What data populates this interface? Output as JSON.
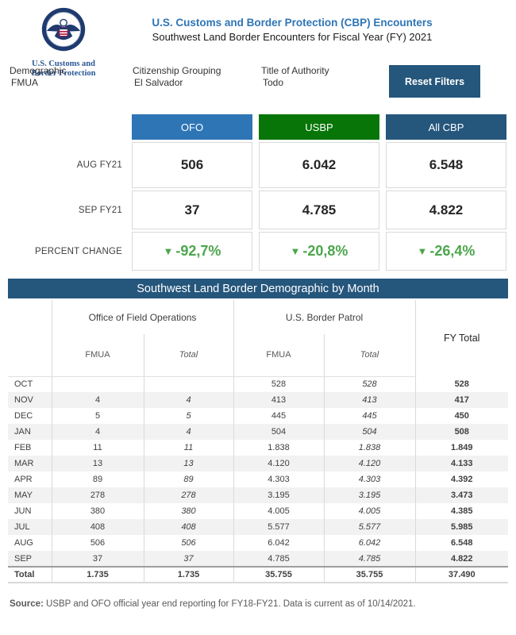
{
  "header": {
    "logo_caption_line1": "U.S. Customs and",
    "logo_caption_line2": "Border Protection",
    "title": "U.S. Customs and Border Protection (CBP) Encounters",
    "subtitle": "Southwest Land Border Encounters for Fiscal Year (FY) 2021"
  },
  "filters": [
    {
      "label": "Demographic",
      "value": "FMUA"
    },
    {
      "label": "Citizenship Grouping",
      "value": "El Salvador"
    },
    {
      "label": "Title of Authority",
      "value": "Todo"
    }
  ],
  "reset_button_label": "Reset Filters",
  "colors": {
    "title_blue": "#2E75B6",
    "ofo_blue": "#2E75B6",
    "usbp_green": "#077507",
    "navy": "#25567C",
    "percent_green": "#4CA64C",
    "alt_row": "#F2F2F2",
    "border_gray": "#D9D9D9"
  },
  "icons": {
    "down_triangle": "▼"
  },
  "summary": {
    "row_labels": {
      "aug": "AUG FY21",
      "sep": "SEP FY21",
      "pct": "PERCENT CHANGE"
    },
    "columns": [
      {
        "label": "OFO",
        "color": "#2E75B6",
        "aug": "506",
        "sep": "37",
        "pct": "-92,7%"
      },
      {
        "label": "USBP",
        "color": "#077507",
        "aug": "6.042",
        "sep": "4.785",
        "pct": "-20,8%"
      },
      {
        "label": "All CBP",
        "color": "#25567C",
        "aug": "6.548",
        "sep": "4.822",
        "pct": "-26,4%"
      }
    ]
  },
  "table": {
    "banner": "Southwest Land Border Demographic by Month",
    "group_headers": {
      "ofo": "Office of Field Operations",
      "usbp": "U.S. Border Patrol",
      "fy_total": "FY Total"
    },
    "sub_headers": {
      "fmua": "FMUA",
      "total": "Total"
    },
    "rows": [
      {
        "month": "OCT",
        "ofo_fmua": "",
        "ofo_total": "",
        "usbp_fmua": "528",
        "usbp_total": "528",
        "fy_total": "528"
      },
      {
        "month": "NOV",
        "ofo_fmua": "4",
        "ofo_total": "4",
        "usbp_fmua": "413",
        "usbp_total": "413",
        "fy_total": "417"
      },
      {
        "month": "DEC",
        "ofo_fmua": "5",
        "ofo_total": "5",
        "usbp_fmua": "445",
        "usbp_total": "445",
        "fy_total": "450"
      },
      {
        "month": "JAN",
        "ofo_fmua": "4",
        "ofo_total": "4",
        "usbp_fmua": "504",
        "usbp_total": "504",
        "fy_total": "508"
      },
      {
        "month": "FEB",
        "ofo_fmua": "11",
        "ofo_total": "11",
        "usbp_fmua": "1.838",
        "usbp_total": "1.838",
        "fy_total": "1.849"
      },
      {
        "month": "MAR",
        "ofo_fmua": "13",
        "ofo_total": "13",
        "usbp_fmua": "4.120",
        "usbp_total": "4.120",
        "fy_total": "4.133"
      },
      {
        "month": "APR",
        "ofo_fmua": "89",
        "ofo_total": "89",
        "usbp_fmua": "4.303",
        "usbp_total": "4.303",
        "fy_total": "4.392"
      },
      {
        "month": "MAY",
        "ofo_fmua": "278",
        "ofo_total": "278",
        "usbp_fmua": "3.195",
        "usbp_total": "3.195",
        "fy_total": "3.473"
      },
      {
        "month": "JUN",
        "ofo_fmua": "380",
        "ofo_total": "380",
        "usbp_fmua": "4.005",
        "usbp_total": "4.005",
        "fy_total": "4.385"
      },
      {
        "month": "JUL",
        "ofo_fmua": "408",
        "ofo_total": "408",
        "usbp_fmua": "5.577",
        "usbp_total": "5.577",
        "fy_total": "5.985"
      },
      {
        "month": "AUG",
        "ofo_fmua": "506",
        "ofo_total": "506",
        "usbp_fmua": "6.042",
        "usbp_total": "6.042",
        "fy_total": "6.548"
      },
      {
        "month": "SEP",
        "ofo_fmua": "37",
        "ofo_total": "37",
        "usbp_fmua": "4.785",
        "usbp_total": "4.785",
        "fy_total": "4.822"
      }
    ],
    "total_row": {
      "month": "Total",
      "ofo_fmua": "1.735",
      "ofo_total": "1.735",
      "usbp_fmua": "35.755",
      "usbp_total": "35.755",
      "fy_total": "37.490"
    }
  },
  "footer": {
    "source_label": "Source:",
    "source_text": " USBP and OFO official year end reporting for FY18-FY21. Data is current as of 10/14/2021."
  }
}
